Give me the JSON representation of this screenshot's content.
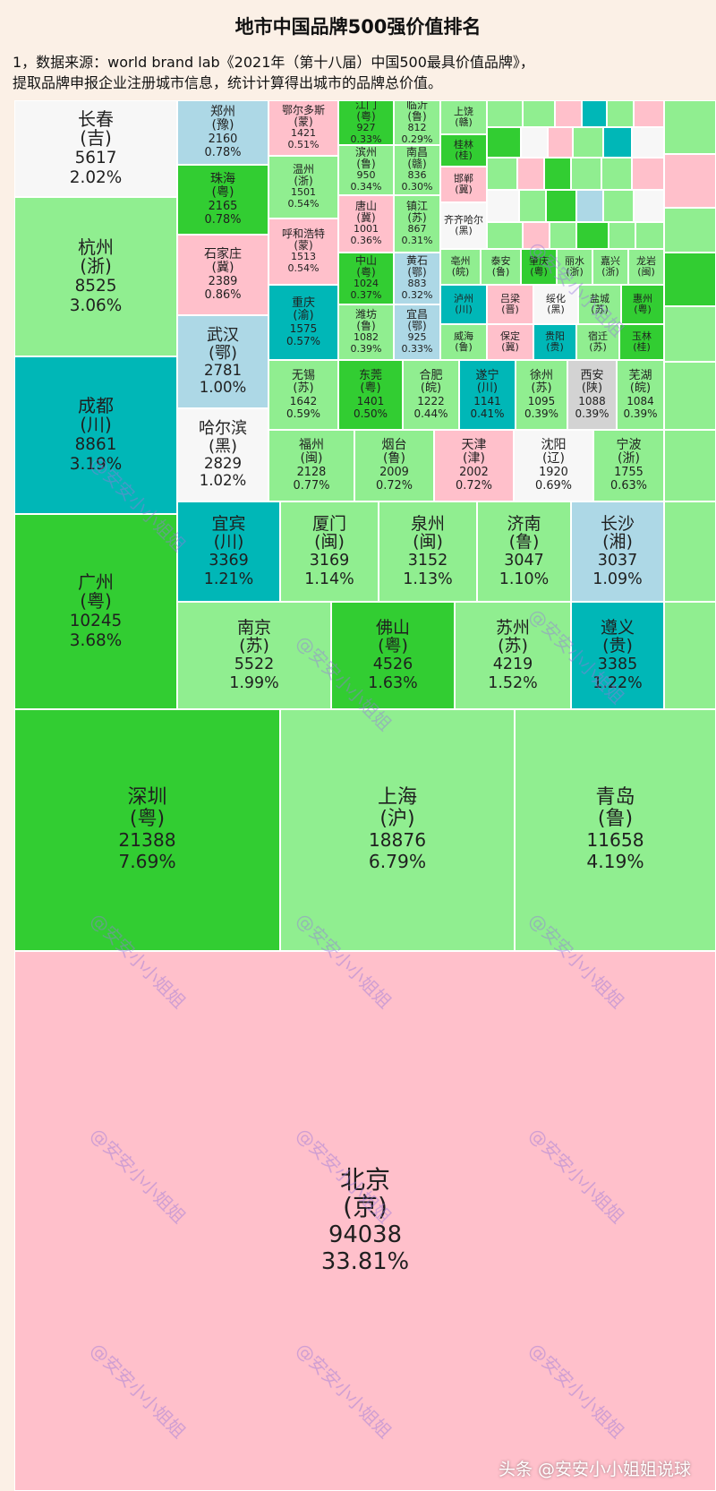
{
  "page": {
    "title": "地市中国品牌500强价值排名",
    "source_line1": "1，数据来源：world brand lab《2021年（第十八届）中国500最具价值品牌》，",
    "source_line2": "提取品牌申报企业注册城市信息，统计计算得出城市的品牌总价值。",
    "footer": "头条 @安安小小姐姐说球",
    "watermark": "@安安小小姐姐"
  },
  "colors": {
    "background": "#fbf0e6",
    "pink": "#ffc0cb",
    "light_green": "#90ee90",
    "green": "#32cd32",
    "teal": "#00b7b7",
    "light_blue": "#add8e6",
    "white": "#f7f7f7",
    "grey": "#d3d3d3"
  },
  "chart_data": {
    "type": "treemap",
    "title": "地市中国品牌500强价值排名",
    "total_unit": "brand value",
    "cells": [
      {
        "city": "北京",
        "province": "京",
        "value": 94038,
        "share": "33.81%",
        "color": "pink"
      },
      {
        "city": "深圳",
        "province": "粤",
        "value": 21388,
        "share": "7.69%",
        "color": "green"
      },
      {
        "city": "上海",
        "province": "沪",
        "value": 18876,
        "share": "6.79%",
        "color": "light_green"
      },
      {
        "city": "青岛",
        "province": "鲁",
        "value": 11658,
        "share": "4.19%",
        "color": "light_green"
      },
      {
        "city": "广州",
        "province": "粤",
        "value": 10245,
        "share": "3.68%",
        "color": "green"
      },
      {
        "city": "成都",
        "province": "川",
        "value": 8861,
        "share": "3.19%",
        "color": "teal"
      },
      {
        "city": "杭州",
        "province": "浙",
        "value": 8525,
        "share": "3.06%",
        "color": "light_green"
      },
      {
        "city": "长春",
        "province": "吉",
        "value": 5617,
        "share": "2.02%",
        "color": "white"
      },
      {
        "city": "南京",
        "province": "苏",
        "value": 5522,
        "share": "1.99%",
        "color": "light_green"
      },
      {
        "city": "佛山",
        "province": "粤",
        "value": 4526,
        "share": "1.63%",
        "color": "green"
      },
      {
        "city": "苏州",
        "province": "苏",
        "value": 4219,
        "share": "1.52%",
        "color": "light_green"
      },
      {
        "city": "遵义",
        "province": "贵",
        "value": 3385,
        "share": "1.22%",
        "color": "teal"
      },
      {
        "city": "宜宾",
        "province": "川",
        "value": 3369,
        "share": "1.21%",
        "color": "teal"
      },
      {
        "city": "厦门",
        "province": "闽",
        "value": 3169,
        "share": "1.14%",
        "color": "light_green"
      },
      {
        "city": "泉州",
        "province": "闽",
        "value": 3152,
        "share": "1.13%",
        "color": "light_green"
      },
      {
        "city": "济南",
        "province": "鲁",
        "value": 3047,
        "share": "1.10%",
        "color": "light_green"
      },
      {
        "city": "长沙",
        "province": "湘",
        "value": 3037,
        "share": "1.09%",
        "color": "light_blue"
      },
      {
        "city": "哈尔滨",
        "province": "黑",
        "value": 2829,
        "share": "1.02%",
        "color": "white"
      },
      {
        "city": "武汉",
        "province": "鄂",
        "value": 2781,
        "share": "1.00%",
        "color": "light_blue"
      },
      {
        "city": "石家庄",
        "province": "冀",
        "value": 2389,
        "share": "0.86%",
        "color": "pink"
      },
      {
        "city": "珠海",
        "province": "粤",
        "value": 2165,
        "share": "0.78%",
        "color": "green"
      },
      {
        "city": "郑州",
        "province": "豫",
        "value": 2160,
        "share": "0.78%",
        "color": "light_blue"
      },
      {
        "city": "福州",
        "province": "闽",
        "value": 2128,
        "share": "0.77%",
        "color": "light_green"
      },
      {
        "city": "烟台",
        "province": "鲁",
        "value": 2009,
        "share": "0.72%",
        "color": "light_green"
      },
      {
        "city": "天津",
        "province": "津",
        "value": 2002,
        "share": "0.72%",
        "color": "pink"
      },
      {
        "city": "沈阳",
        "province": "辽",
        "value": 1920,
        "share": "0.69%",
        "color": "white"
      },
      {
        "city": "宁波",
        "province": "浙",
        "value": 1755,
        "share": "0.63%",
        "color": "light_green"
      },
      {
        "city": "无锡",
        "province": "苏",
        "value": 1642,
        "share": "0.59%",
        "color": "light_green"
      },
      {
        "city": "重庆",
        "province": "渝",
        "value": 1575,
        "share": "0.57%",
        "color": "teal"
      },
      {
        "city": "呼和浩特",
        "province": "蒙",
        "value": 1513,
        "share": "0.54%",
        "color": "pink"
      },
      {
        "city": "温州",
        "province": "浙",
        "value": 1501,
        "share": "0.54%",
        "color": "light_green"
      },
      {
        "city": "鄂尔多斯",
        "province": "蒙",
        "value": 1421,
        "share": "0.51%",
        "color": "pink"
      },
      {
        "city": "东莞",
        "province": "粤",
        "value": 1401,
        "share": "0.50%",
        "color": "green"
      },
      {
        "city": "合肥",
        "province": "皖",
        "value": 1222,
        "share": "0.44%",
        "color": "light_green"
      },
      {
        "city": "遂宁",
        "province": "川",
        "value": 1141,
        "share": "0.41%",
        "color": "teal"
      },
      {
        "city": "徐州",
        "province": "苏",
        "value": 1095,
        "share": "0.39%",
        "color": "light_green"
      },
      {
        "city": "西安",
        "province": "陕",
        "value": 1088,
        "share": "0.39%",
        "color": "grey"
      },
      {
        "city": "芜湖",
        "province": "皖",
        "value": 1084,
        "share": "0.39%",
        "color": "light_green"
      },
      {
        "city": "潍坊",
        "province": "鲁",
        "value": 1082,
        "share": "0.39%",
        "color": "light_green"
      },
      {
        "city": "中山",
        "province": "粤",
        "value": 1024,
        "share": "0.37%",
        "color": "green"
      },
      {
        "city": "唐山",
        "province": "冀",
        "value": 1001,
        "share": "0.36%",
        "color": "pink"
      },
      {
        "city": "滨州",
        "province": "鲁",
        "value": 950,
        "share": "0.34%",
        "color": "light_green"
      },
      {
        "city": "江门",
        "province": "粤",
        "value": 927,
        "share": "0.33%",
        "color": "green"
      },
      {
        "city": "宜昌",
        "province": "鄂",
        "value": 925,
        "share": "0.33%",
        "color": "light_blue"
      },
      {
        "city": "黄石",
        "province": "鄂",
        "value": 883,
        "share": "0.32%",
        "color": "light_blue"
      },
      {
        "city": "镇江",
        "province": "苏",
        "value": 867,
        "share": "0.31%",
        "color": "light_green"
      },
      {
        "city": "南昌",
        "province": "赣",
        "value": 836,
        "share": "0.30%",
        "color": "light_green"
      },
      {
        "city": "临沂",
        "province": "鲁",
        "value": 812,
        "share": "0.29%",
        "color": "light_green"
      },
      {
        "city": "上饶",
        "province": "赣",
        "value": null,
        "share": "",
        "color": "light_green"
      },
      {
        "city": "桂林",
        "province": "桂",
        "value": null,
        "share": "",
        "color": "green"
      },
      {
        "city": "邯郸",
        "province": "冀",
        "value": null,
        "share": "",
        "color": "pink"
      },
      {
        "city": "齐齐哈尔",
        "province": "黑",
        "value": null,
        "share": "",
        "color": "white"
      },
      {
        "city": "亳州",
        "province": "皖",
        "value": null,
        "share": "",
        "color": "light_green"
      },
      {
        "city": "泰安",
        "province": "鲁",
        "value": null,
        "share": "",
        "color": "light_green"
      },
      {
        "city": "肇庆",
        "province": "粤",
        "value": null,
        "share": "",
        "color": "green"
      },
      {
        "city": "丽水",
        "province": "浙",
        "value": null,
        "share": "",
        "color": "light_green"
      },
      {
        "city": "嘉兴",
        "province": "浙",
        "value": null,
        "share": "",
        "color": "light_green"
      },
      {
        "city": "龙岩",
        "province": "闽",
        "value": null,
        "share": "",
        "color": "light_green"
      },
      {
        "city": "泸州",
        "province": "川",
        "value": null,
        "share": "",
        "color": "teal"
      },
      {
        "city": "吕梁",
        "province": "晋",
        "value": null,
        "share": "",
        "color": "pink"
      },
      {
        "city": "绥化",
        "province": "黑",
        "value": null,
        "share": "",
        "color": "white"
      },
      {
        "city": "盐城",
        "province": "苏",
        "value": null,
        "share": "",
        "color": "light_green"
      },
      {
        "city": "惠州",
        "province": "粤",
        "value": null,
        "share": "",
        "color": "green"
      },
      {
        "city": "威海",
        "province": "鲁",
        "value": null,
        "share": "",
        "color": "light_green"
      },
      {
        "city": "保定",
        "province": "冀",
        "value": null,
        "share": "",
        "color": "pink"
      },
      {
        "city": "贵阳",
        "province": "贵",
        "value": null,
        "share": "",
        "color": "teal"
      },
      {
        "city": "宿迁",
        "province": "苏",
        "value": null,
        "share": "",
        "color": "light_green"
      },
      {
        "city": "玉林",
        "province": "桂",
        "value": null,
        "share": "",
        "color": "green"
      }
    ]
  }
}
